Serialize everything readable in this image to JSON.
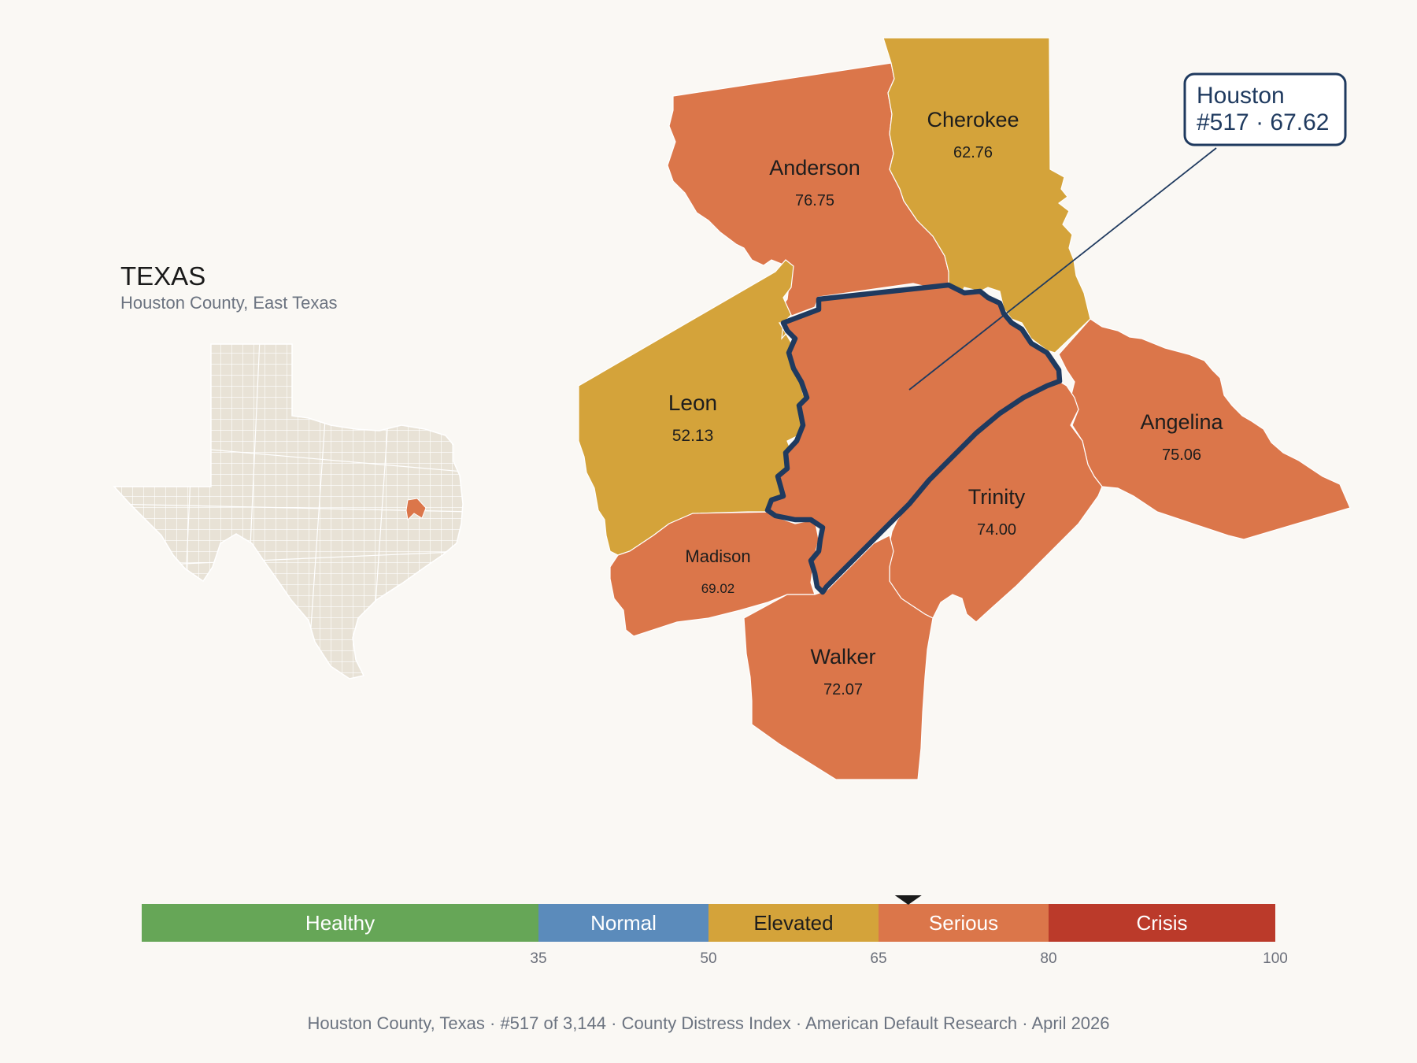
{
  "inset": {
    "title": "TEXAS",
    "subtitle": "Houston County, East Texas"
  },
  "counties": [
    {
      "id": "anderson",
      "name": "Anderson",
      "score": "76.75",
      "color": "#db764a"
    },
    {
      "id": "cherokee",
      "name": "Cherokee",
      "score": "62.76",
      "color": "#d4a33a"
    },
    {
      "id": "leon",
      "name": "Leon",
      "score": "52.13",
      "color": "#d4a33a"
    },
    {
      "id": "angelina",
      "name": "Angelina",
      "score": "75.06",
      "color": "#db764a"
    },
    {
      "id": "trinity",
      "name": "Trinity",
      "score": "74.00",
      "color": "#db764a"
    },
    {
      "id": "madison",
      "name": "Madison",
      "score": "69.02",
      "color": "#db764a"
    },
    {
      "id": "walker",
      "name": "Walker",
      "score": "72.07",
      "color": "#db764a"
    },
    {
      "id": "houston",
      "name": "Houston",
      "score": "67.62",
      "color": "#db764a",
      "highlight": true
    }
  ],
  "callout": {
    "line1": "Houston",
    "line2": "#517 · 67.62"
  },
  "legend": {
    "segments": [
      {
        "label": "Healthy",
        "from": 0,
        "to": 35,
        "color": "#66a657",
        "text_color": "#ffffff"
      },
      {
        "label": "Normal",
        "from": 35,
        "to": 50,
        "color": "#5b8bbb",
        "text_color": "#ffffff"
      },
      {
        "label": "Elevated",
        "from": 50,
        "to": 65,
        "color": "#d4a33a",
        "text_color": "#1d1d1d"
      },
      {
        "label": "Serious",
        "from": 65,
        "to": 80,
        "color": "#db764a",
        "text_color": "#ffffff"
      },
      {
        "label": "Crisis",
        "from": 80,
        "to": 100,
        "color": "#bb3a2a",
        "text_color": "#ffffff"
      }
    ],
    "ticks": [
      "35",
      "50",
      "65",
      "80",
      "100"
    ],
    "marker_value": 67.62
  },
  "footer": "Houston County, Texas  ·  #517 of 3,144  ·  County Distress Index  ·  American Default Research  ·  April 2026",
  "colors": {
    "background": "#faf8f4",
    "highlight_outline": "#1f3a5f",
    "inset_fill": "#e8e2d6"
  }
}
